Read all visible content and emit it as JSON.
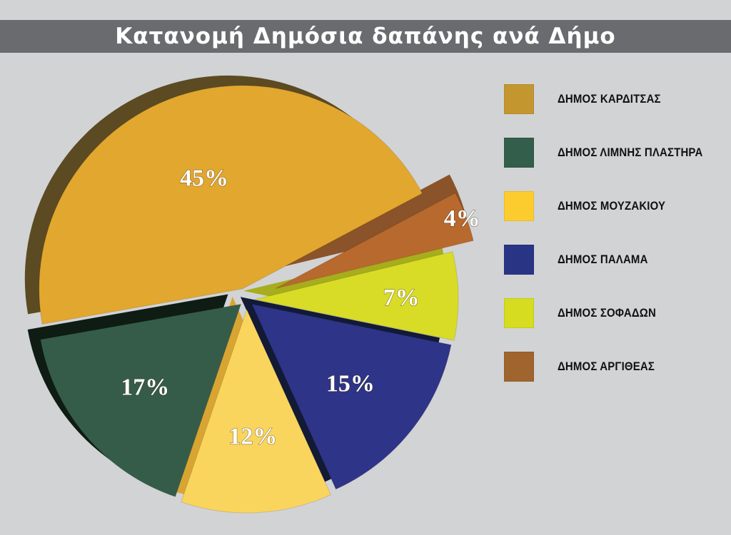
{
  "title": "Κατανομή Δημόσια δαπάνης ανά Δήμο",
  "chart_data": {
    "type": "pie",
    "title": "Κατανομή Δημόσια δαπάνης ανά Δήμο",
    "legend_position": "right",
    "slices": [
      {
        "name": "ΔΗΜΟΣ ΚΑΡΔΙΤΣΑΣ",
        "value": 45,
        "label": "45%",
        "color": "#e2a72e",
        "side_color": "#5c4a22"
      },
      {
        "name": "ΔΗΜΟΣ ΛΙΜΝΗΣ ΠΛΑΣΤΗΡΑ",
        "value": 17,
        "label": "17%",
        "color": "#355c49",
        "side_color": "#0e1c14"
      },
      {
        "name": "ΔΗΜΟΣ ΜΟΥΖΑΚΙΟΥ",
        "value": 12,
        "label": "12%",
        "color": "#fad55e",
        "side_color": "#d9a532"
      },
      {
        "name": "ΔΗΜΟΣ ΠΑΛΑΜΑ",
        "value": 15,
        "label": "15%",
        "color": "#2e3488",
        "side_color": "#121a36"
      },
      {
        "name": "ΔΗΜΟΣ ΣΟΦΑΔΩΝ",
        "value": 7,
        "label": "7%",
        "color": "#d8dc26",
        "side_color": "#a7ad1c"
      },
      {
        "name": "ΔΗΜΟΣ ΑΡΓΙΘΕΑΣ",
        "value": 4,
        "label": "4%",
        "color": "#b8692e",
        "side_color": "#8a5329"
      }
    ]
  },
  "legend": [
    {
      "label": "ΔΗΜΟΣ ΚΑΡΔΙΤΣΑΣ",
      "color": "#c4962f"
    },
    {
      "label": "ΔΗΜΟΣ ΛΙΜΝΗΣ ΠΛΑΣΤΗΡΑ",
      "color": "#335e4c"
    },
    {
      "label": "ΔΗΜΟΣ ΜΟΥΖΑΚΙΟΥ",
      "color": "#fccc2e"
    },
    {
      "label": "ΔΗΜΟΣ ΠΑΛΑΜΑ",
      "color": "#2a3485"
    },
    {
      "label": "ΔΗΜΟΣ ΣΟΦΑΔΩΝ",
      "color": "#d6dc1f"
    },
    {
      "label": "ΔΗΜΟΣ ΑΡΓΙΘΕΑΣ",
      "color": "#a0642f"
    }
  ]
}
